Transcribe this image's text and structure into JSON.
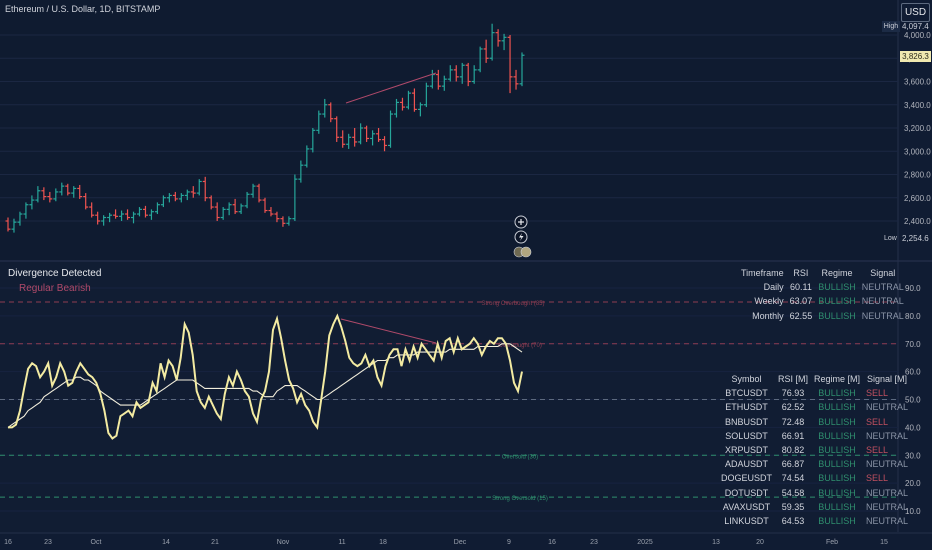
{
  "header": {
    "symbol_title": "Ethereum / U.S. Dollar, 1D, BITSTAMP",
    "currency_button": "USD"
  },
  "price_panel": {
    "high_label": "High",
    "high_value": "4,097.4",
    "low_label": "Low",
    "low_value": "2,254.6",
    "current_value": "3,826.3"
  },
  "indicator": {
    "divergence_title": "Divergence Detected",
    "divergence_type": "Regular Bearish",
    "levels": [
      {
        "value": 85,
        "label": "Strong Overbought (85)",
        "color": "#8f3d52"
      },
      {
        "value": 70,
        "label": "Overbought (70)",
        "color": "#8f3d52"
      },
      {
        "value": 50,
        "label": "",
        "color": "#5d6a7f"
      },
      {
        "value": 30,
        "label": "Oversold (30)",
        "color": "#2f8f6e"
      },
      {
        "value": 15,
        "label": "Strong Oversold (15)",
        "color": "#2f8f6e"
      }
    ]
  },
  "timeframe_table": {
    "headers": [
      "Timeframe",
      "RSI",
      "Regime",
      "Signal"
    ],
    "rows": [
      [
        "Daily",
        "60.11",
        "BULLISH",
        "NEUTRAL"
      ],
      [
        "Weekly",
        "63.07",
        "BULLISH",
        "NEUTRAL"
      ],
      [
        "Monthly",
        "62.55",
        "BULLISH",
        "NEUTRAL"
      ]
    ]
  },
  "screener_table": {
    "headers": [
      "Symbol",
      "RSI [M]",
      "Regime [M]",
      "Signal [M]"
    ],
    "rows": [
      [
        "BTCUSDT",
        "76.93",
        "BULLISH",
        "SELL"
      ],
      [
        "ETHUSDT",
        "62.52",
        "BULLISH",
        "NEUTRAL"
      ],
      [
        "BNBUSDT",
        "72.48",
        "BULLISH",
        "SELL"
      ],
      [
        "SOLUSDT",
        "66.91",
        "BULLISH",
        "NEUTRAL"
      ],
      [
        "XRPUSDT",
        "80.82",
        "BULLISH",
        "SELL"
      ],
      [
        "ADAUSDT",
        "66.87",
        "BULLISH",
        "NEUTRAL"
      ],
      [
        "DOGEUSDT",
        "74.54",
        "BULLISH",
        "SELL"
      ],
      [
        "DOTUSDT",
        "54.58",
        "BULLISH",
        "NEUTRAL"
      ],
      [
        "AVAXUSDT",
        "59.35",
        "BULLISH",
        "NEUTRAL"
      ],
      [
        "LINKUSDT",
        "64.53",
        "BULLISH",
        "NEUTRAL"
      ]
    ]
  },
  "colors": {
    "background": "#101c33",
    "up": "#26a69a",
    "down": "#ef5350",
    "rsi_line": "#f3eba2",
    "rsi_ma": "#f2eedc",
    "divergence": "#b04a6a",
    "bullish": "#2f8f6e",
    "sell": "#c05060",
    "neutral": "#8a94a6"
  },
  "chart_data": [
    {
      "type": "candlestick",
      "title": "Ethereum / U.S. Dollar, 1D, BITSTAMP",
      "y_ticks": [
        "4,000.0",
        "3,800.0",
        "3,600.0",
        "3,400.0",
        "3,200.0",
        "3,000.0",
        "2,800.0",
        "2,600.0",
        "2,400.0"
      ],
      "ylim": [
        2150,
        4300
      ],
      "ohlc": [
        [
          2400,
          2430,
          2310,
          2330
        ],
        [
          2330,
          2420,
          2300,
          2390
        ],
        [
          2390,
          2480,
          2360,
          2460
        ],
        [
          2460,
          2560,
          2420,
          2540
        ],
        [
          2540,
          2620,
          2500,
          2580
        ],
        [
          2580,
          2700,
          2560,
          2660
        ],
        [
          2660,
          2690,
          2580,
          2610
        ],
        [
          2610,
          2650,
          2560,
          2590
        ],
        [
          2590,
          2680,
          2570,
          2650
        ],
        [
          2650,
          2730,
          2620,
          2700
        ],
        [
          2700,
          2720,
          2620,
          2640
        ],
        [
          2640,
          2700,
          2600,
          2680
        ],
        [
          2680,
          2710,
          2590,
          2610
        ],
        [
          2610,
          2640,
          2500,
          2520
        ],
        [
          2520,
          2560,
          2430,
          2450
        ],
        [
          2450,
          2480,
          2370,
          2400
        ],
        [
          2400,
          2450,
          2360,
          2430
        ],
        [
          2430,
          2470,
          2390,
          2450
        ],
        [
          2450,
          2500,
          2420,
          2440
        ],
        [
          2440,
          2490,
          2400,
          2460
        ],
        [
          2460,
          2500,
          2410,
          2430
        ],
        [
          2430,
          2480,
          2380,
          2460
        ],
        [
          2460,
          2520,
          2440,
          2500
        ],
        [
          2500,
          2530,
          2430,
          2450
        ],
        [
          2450,
          2500,
          2410,
          2480
        ],
        [
          2480,
          2560,
          2460,
          2540
        ],
        [
          2540,
          2620,
          2520,
          2600
        ],
        [
          2600,
          2640,
          2560,
          2620
        ],
        [
          2620,
          2650,
          2570,
          2590
        ],
        [
          2590,
          2640,
          2560,
          2620
        ],
        [
          2620,
          2670,
          2580,
          2650
        ],
        [
          2650,
          2700,
          2600,
          2640
        ],
        [
          2640,
          2760,
          2620,
          2740
        ],
        [
          2740,
          2780,
          2570,
          2600
        ],
        [
          2600,
          2620,
          2500,
          2520
        ],
        [
          2520,
          2560,
          2400,
          2430
        ],
        [
          2430,
          2520,
          2410,
          2500
        ],
        [
          2500,
          2560,
          2450,
          2540
        ],
        [
          2540,
          2590,
          2460,
          2480
        ],
        [
          2480,
          2550,
          2460,
          2530
        ],
        [
          2530,
          2650,
          2510,
          2630
        ],
        [
          2630,
          2720,
          2600,
          2700
        ],
        [
          2700,
          2720,
          2560,
          2580
        ],
        [
          2580,
          2600,
          2470,
          2490
        ],
        [
          2490,
          2520,
          2440,
          2460
        ],
        [
          2460,
          2480,
          2390,
          2420
        ],
        [
          2420,
          2440,
          2350,
          2380
        ],
        [
          2380,
          2440,
          2360,
          2420
        ],
        [
          2420,
          2800,
          2400,
          2760
        ],
        [
          2760,
          2920,
          2730,
          2880
        ],
        [
          2880,
          3050,
          2860,
          3020
        ],
        [
          3020,
          3200,
          2990,
          3180
        ],
        [
          3180,
          3350,
          3150,
          3320
        ],
        [
          3320,
          3450,
          3290,
          3400
        ],
        [
          3400,
          3420,
          3250,
          3280
        ],
        [
          3280,
          3300,
          3080,
          3120
        ],
        [
          3120,
          3180,
          3030,
          3060
        ],
        [
          3060,
          3150,
          3020,
          3120
        ],
        [
          3120,
          3200,
          3040,
          3080
        ],
        [
          3080,
          3240,
          3060,
          3200
        ],
        [
          3200,
          3220,
          3080,
          3110
        ],
        [
          3110,
          3180,
          3050,
          3150
        ],
        [
          3150,
          3200,
          3080,
          3100
        ],
        [
          3100,
          3130,
          3000,
          3050
        ],
        [
          3050,
          3350,
          3030,
          3320
        ],
        [
          3320,
          3450,
          3290,
          3420
        ],
        [
          3420,
          3460,
          3350,
          3380
        ],
        [
          3380,
          3520,
          3360,
          3500
        ],
        [
          3500,
          3540,
          3340,
          3360
        ],
        [
          3360,
          3420,
          3300,
          3400
        ],
        [
          3400,
          3590,
          3380,
          3560
        ],
        [
          3560,
          3700,
          3540,
          3660
        ],
        [
          3660,
          3700,
          3530,
          3560
        ],
        [
          3560,
          3650,
          3520,
          3620
        ],
        [
          3620,
          3740,
          3600,
          3700
        ],
        [
          3700,
          3740,
          3600,
          3640
        ],
        [
          3640,
          3760,
          3580,
          3740
        ],
        [
          3740,
          3760,
          3560,
          3600
        ],
        [
          3600,
          3740,
          3580,
          3700
        ],
        [
          3700,
          3900,
          3680,
          3880
        ],
        [
          3880,
          3960,
          3760,
          3800
        ],
        [
          3800,
          4097,
          3780,
          4020
        ],
        [
          4020,
          4050,
          3900,
          3950
        ],
        [
          3950,
          4010,
          3870,
          3980
        ],
        [
          3980,
          4000,
          3500,
          3640
        ],
        [
          3640,
          3700,
          3530,
          3580
        ],
        [
          3580,
          3850,
          3560,
          3826
        ]
      ]
    },
    {
      "type": "line",
      "title": "",
      "y_ticks": [
        "90.0",
        "80.0",
        "70.0",
        "60.0",
        "50.0",
        "40.0",
        "30.0",
        "20.0",
        "10.0"
      ],
      "ylim": [
        4,
        100
      ],
      "series": [
        {
          "values": [
            40,
            40,
            41,
            46,
            54,
            61,
            63,
            62,
            58,
            60,
            63,
            55,
            58,
            63,
            60,
            55,
            56,
            60,
            63,
            61,
            59,
            58,
            56,
            52,
            46,
            38,
            36,
            37,
            44,
            45,
            46,
            44,
            49,
            47,
            48,
            49,
            56,
            53,
            63,
            58,
            64,
            62,
            57,
            65,
            77,
            74,
            66,
            53,
            49,
            47,
            51,
            48,
            45,
            43,
            52,
            58,
            55,
            60,
            57,
            53,
            51,
            45,
            42,
            50,
            53,
            60,
            75,
            79,
            72,
            64,
            57,
            54,
            49,
            52,
            48,
            46,
            42,
            40,
            50,
            60,
            73,
            77,
            80,
            76,
            71,
            65,
            63,
            62,
            63,
            66,
            62,
            64,
            58,
            55,
            62,
            66,
            68,
            68,
            62,
            68,
            64,
            69,
            65,
            70,
            68,
            66,
            64,
            70,
            65,
            71,
            72,
            67,
            72,
            68,
            69,
            70,
            72,
            70,
            66,
            69,
            71,
            70,
            72,
            72,
            70,
            64,
            56,
            53,
            60
          ]
        },
        {
          "values": [
            40,
            41,
            42,
            43,
            44,
            46,
            47,
            48,
            49,
            51,
            52,
            53,
            54,
            55,
            56,
            57,
            57,
            58,
            58,
            57,
            57,
            56,
            55,
            53,
            52,
            51,
            50,
            49,
            48,
            48,
            48,
            48,
            48,
            48,
            49,
            50,
            51,
            52,
            53,
            54,
            55,
            56,
            57,
            57,
            57,
            57,
            57,
            56,
            55,
            54,
            54,
            54,
            54,
            54,
            54,
            54,
            54,
            54,
            54,
            54,
            54,
            53,
            53,
            52,
            51,
            51,
            51,
            53,
            54,
            55,
            55,
            55,
            55,
            54,
            53,
            52,
            51,
            50,
            50,
            51,
            52,
            53,
            54,
            55,
            56,
            57,
            58,
            59,
            60,
            61,
            62,
            63,
            64,
            64,
            64,
            65,
            65,
            66,
            66,
            66,
            66,
            66,
            67,
            67,
            67,
            67,
            67,
            67,
            67,
            67,
            68,
            68,
            68,
            68,
            68,
            68,
            68,
            69,
            69,
            69,
            69,
            69,
            69,
            70,
            70,
            70,
            69,
            68,
            67
          ]
        }
      ]
    }
  ],
  "axes": {
    "x_labels": [
      "16",
      "23",
      "Oct",
      "14",
      "21",
      "Nov",
      "11",
      "18",
      "Dec",
      "9",
      "16",
      "23",
      "2025",
      "13",
      "20",
      "Feb",
      "15"
    ]
  }
}
